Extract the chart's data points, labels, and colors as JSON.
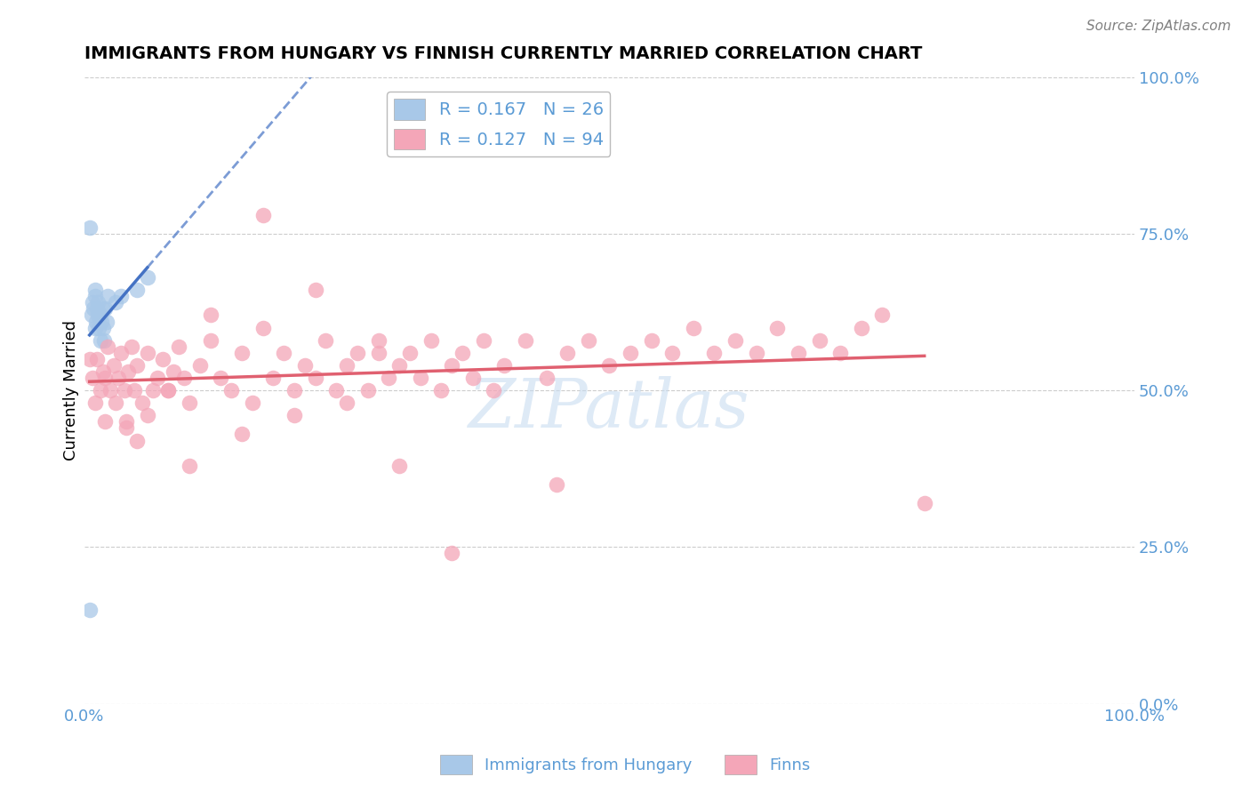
{
  "title": "IMMIGRANTS FROM HUNGARY VS FINNISH CURRENTLY MARRIED CORRELATION CHART",
  "source_text": "Source: ZipAtlas.com",
  "ylabel": "Currently Married",
  "right_ytick_labels": [
    "0.0%",
    "25.0%",
    "50.0%",
    "75.0%",
    "100.0%"
  ],
  "right_ytick_values": [
    0.0,
    0.25,
    0.5,
    0.75,
    1.0
  ],
  "xlim": [
    0.0,
    1.0
  ],
  "ylim": [
    0.0,
    1.0
  ],
  "xtick_labels": [
    "0.0%",
    "100.0%"
  ],
  "xtick_values": [
    0.0,
    1.0
  ],
  "legend_label1": "Immigrants from Hungary",
  "legend_label2": "Finns",
  "R1": 0.167,
  "N1": 26,
  "R2": 0.127,
  "N2": 94,
  "color_hungary": "#A8C8E8",
  "color_finns": "#F4A6B8",
  "color_hungary_line": "#4472C4",
  "color_finns_line": "#E06070",
  "color_axis_text": "#5B9BD5",
  "watermark_color": "#C8DCF0",
  "background_color": "#FFFFFF",
  "grid_color": "#CCCCCC",
  "hungary_x": [
    0.005,
    0.007,
    0.008,
    0.009,
    0.01,
    0.01,
    0.01,
    0.011,
    0.012,
    0.013,
    0.013,
    0.014,
    0.015,
    0.015,
    0.016,
    0.017,
    0.018,
    0.019,
    0.02,
    0.021,
    0.022,
    0.03,
    0.035,
    0.05,
    0.06,
    0.005
  ],
  "hungary_y": [
    0.76,
    0.62,
    0.64,
    0.63,
    0.65,
    0.66,
    0.6,
    0.61,
    0.63,
    0.62,
    0.64,
    0.6,
    0.58,
    0.62,
    0.61,
    0.63,
    0.6,
    0.58,
    0.63,
    0.61,
    0.65,
    0.64,
    0.65,
    0.66,
    0.68,
    0.15
  ],
  "finns_x": [
    0.005,
    0.008,
    0.01,
    0.012,
    0.015,
    0.018,
    0.02,
    0.022,
    0.025,
    0.028,
    0.03,
    0.032,
    0.035,
    0.038,
    0.04,
    0.042,
    0.045,
    0.048,
    0.05,
    0.055,
    0.06,
    0.065,
    0.07,
    0.075,
    0.08,
    0.085,
    0.09,
    0.095,
    0.1,
    0.11,
    0.12,
    0.13,
    0.14,
    0.15,
    0.16,
    0.17,
    0.18,
    0.19,
    0.2,
    0.21,
    0.22,
    0.23,
    0.24,
    0.25,
    0.26,
    0.27,
    0.28,
    0.29,
    0.3,
    0.31,
    0.32,
    0.33,
    0.34,
    0.35,
    0.36,
    0.37,
    0.38,
    0.39,
    0.4,
    0.42,
    0.44,
    0.46,
    0.48,
    0.5,
    0.52,
    0.54,
    0.56,
    0.58,
    0.6,
    0.62,
    0.64,
    0.66,
    0.68,
    0.7,
    0.72,
    0.74,
    0.76,
    0.05,
    0.1,
    0.15,
    0.2,
    0.25,
    0.3,
    0.02,
    0.04,
    0.06,
    0.08,
    0.12,
    0.17,
    0.22,
    0.28,
    0.35,
    0.45,
    0.8
  ],
  "finns_y": [
    0.55,
    0.52,
    0.48,
    0.55,
    0.5,
    0.53,
    0.52,
    0.57,
    0.5,
    0.54,
    0.48,
    0.52,
    0.56,
    0.5,
    0.45,
    0.53,
    0.57,
    0.5,
    0.54,
    0.48,
    0.56,
    0.5,
    0.52,
    0.55,
    0.5,
    0.53,
    0.57,
    0.52,
    0.48,
    0.54,
    0.58,
    0.52,
    0.5,
    0.56,
    0.48,
    0.6,
    0.52,
    0.56,
    0.5,
    0.54,
    0.52,
    0.58,
    0.5,
    0.54,
    0.56,
    0.5,
    0.58,
    0.52,
    0.54,
    0.56,
    0.52,
    0.58,
    0.5,
    0.54,
    0.56,
    0.52,
    0.58,
    0.5,
    0.54,
    0.58,
    0.52,
    0.56,
    0.58,
    0.54,
    0.56,
    0.58,
    0.56,
    0.6,
    0.56,
    0.58,
    0.56,
    0.6,
    0.56,
    0.58,
    0.56,
    0.6,
    0.62,
    0.42,
    0.38,
    0.43,
    0.46,
    0.48,
    0.38,
    0.45,
    0.44,
    0.46,
    0.5,
    0.62,
    0.78,
    0.66,
    0.56,
    0.24,
    0.35,
    0.32
  ]
}
